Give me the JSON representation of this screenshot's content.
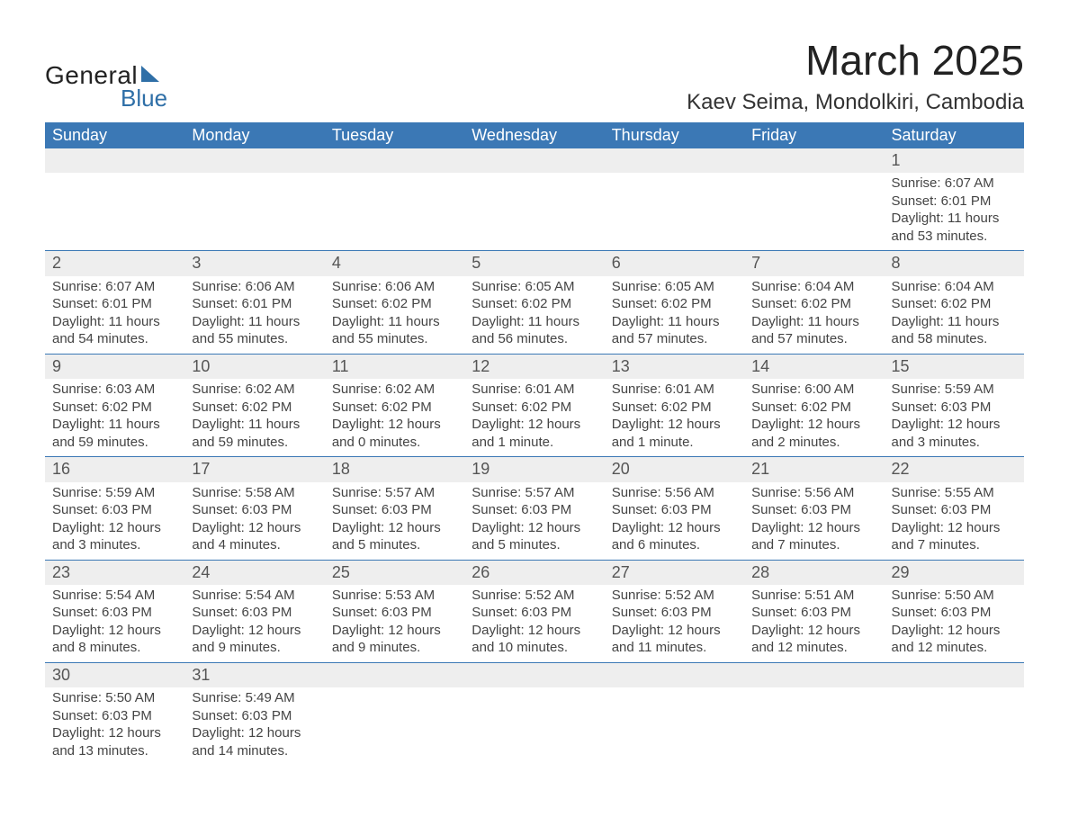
{
  "logo": {
    "text_general": "General",
    "text_blue": "Blue"
  },
  "title": "March 2025",
  "location": "Kaev Seima, Mondolkiri, Cambodia",
  "colors": {
    "header_bg": "#3b78b5",
    "header_text": "#ffffff",
    "daynum_bg": "#eeeeee",
    "row_divider": "#3b78b5",
    "text": "#333333",
    "brand_blue": "#2f6fa7"
  },
  "typography": {
    "title_fontsize": 46,
    "location_fontsize": 24,
    "dayheader_fontsize": 18,
    "daynum_fontsize": 18,
    "cell_fontsize": 15
  },
  "day_headers": [
    "Sunday",
    "Monday",
    "Tuesday",
    "Wednesday",
    "Thursday",
    "Friday",
    "Saturday"
  ],
  "weeks": [
    [
      null,
      null,
      null,
      null,
      null,
      null,
      {
        "n": "1",
        "sr": "Sunrise: 6:07 AM",
        "ss": "Sunset: 6:01 PM",
        "dl": "Daylight: 11 hours and 53 minutes."
      }
    ],
    [
      {
        "n": "2",
        "sr": "Sunrise: 6:07 AM",
        "ss": "Sunset: 6:01 PM",
        "dl": "Daylight: 11 hours and 54 minutes."
      },
      {
        "n": "3",
        "sr": "Sunrise: 6:06 AM",
        "ss": "Sunset: 6:01 PM",
        "dl": "Daylight: 11 hours and 55 minutes."
      },
      {
        "n": "4",
        "sr": "Sunrise: 6:06 AM",
        "ss": "Sunset: 6:02 PM",
        "dl": "Daylight: 11 hours and 55 minutes."
      },
      {
        "n": "5",
        "sr": "Sunrise: 6:05 AM",
        "ss": "Sunset: 6:02 PM",
        "dl": "Daylight: 11 hours and 56 minutes."
      },
      {
        "n": "6",
        "sr": "Sunrise: 6:05 AM",
        "ss": "Sunset: 6:02 PM",
        "dl": "Daylight: 11 hours and 57 minutes."
      },
      {
        "n": "7",
        "sr": "Sunrise: 6:04 AM",
        "ss": "Sunset: 6:02 PM",
        "dl": "Daylight: 11 hours and 57 minutes."
      },
      {
        "n": "8",
        "sr": "Sunrise: 6:04 AM",
        "ss": "Sunset: 6:02 PM",
        "dl": "Daylight: 11 hours and 58 minutes."
      }
    ],
    [
      {
        "n": "9",
        "sr": "Sunrise: 6:03 AM",
        "ss": "Sunset: 6:02 PM",
        "dl": "Daylight: 11 hours and 59 minutes."
      },
      {
        "n": "10",
        "sr": "Sunrise: 6:02 AM",
        "ss": "Sunset: 6:02 PM",
        "dl": "Daylight: 11 hours and 59 minutes."
      },
      {
        "n": "11",
        "sr": "Sunrise: 6:02 AM",
        "ss": "Sunset: 6:02 PM",
        "dl": "Daylight: 12 hours and 0 minutes."
      },
      {
        "n": "12",
        "sr": "Sunrise: 6:01 AM",
        "ss": "Sunset: 6:02 PM",
        "dl": "Daylight: 12 hours and 1 minute."
      },
      {
        "n": "13",
        "sr": "Sunrise: 6:01 AM",
        "ss": "Sunset: 6:02 PM",
        "dl": "Daylight: 12 hours and 1 minute."
      },
      {
        "n": "14",
        "sr": "Sunrise: 6:00 AM",
        "ss": "Sunset: 6:02 PM",
        "dl": "Daylight: 12 hours and 2 minutes."
      },
      {
        "n": "15",
        "sr": "Sunrise: 5:59 AM",
        "ss": "Sunset: 6:03 PM",
        "dl": "Daylight: 12 hours and 3 minutes."
      }
    ],
    [
      {
        "n": "16",
        "sr": "Sunrise: 5:59 AM",
        "ss": "Sunset: 6:03 PM",
        "dl": "Daylight: 12 hours and 3 minutes."
      },
      {
        "n": "17",
        "sr": "Sunrise: 5:58 AM",
        "ss": "Sunset: 6:03 PM",
        "dl": "Daylight: 12 hours and 4 minutes."
      },
      {
        "n": "18",
        "sr": "Sunrise: 5:57 AM",
        "ss": "Sunset: 6:03 PM",
        "dl": "Daylight: 12 hours and 5 minutes."
      },
      {
        "n": "19",
        "sr": "Sunrise: 5:57 AM",
        "ss": "Sunset: 6:03 PM",
        "dl": "Daylight: 12 hours and 5 minutes."
      },
      {
        "n": "20",
        "sr": "Sunrise: 5:56 AM",
        "ss": "Sunset: 6:03 PM",
        "dl": "Daylight: 12 hours and 6 minutes."
      },
      {
        "n": "21",
        "sr": "Sunrise: 5:56 AM",
        "ss": "Sunset: 6:03 PM",
        "dl": "Daylight: 12 hours and 7 minutes."
      },
      {
        "n": "22",
        "sr": "Sunrise: 5:55 AM",
        "ss": "Sunset: 6:03 PM",
        "dl": "Daylight: 12 hours and 7 minutes."
      }
    ],
    [
      {
        "n": "23",
        "sr": "Sunrise: 5:54 AM",
        "ss": "Sunset: 6:03 PM",
        "dl": "Daylight: 12 hours and 8 minutes."
      },
      {
        "n": "24",
        "sr": "Sunrise: 5:54 AM",
        "ss": "Sunset: 6:03 PM",
        "dl": "Daylight: 12 hours and 9 minutes."
      },
      {
        "n": "25",
        "sr": "Sunrise: 5:53 AM",
        "ss": "Sunset: 6:03 PM",
        "dl": "Daylight: 12 hours and 9 minutes."
      },
      {
        "n": "26",
        "sr": "Sunrise: 5:52 AM",
        "ss": "Sunset: 6:03 PM",
        "dl": "Daylight: 12 hours and 10 minutes."
      },
      {
        "n": "27",
        "sr": "Sunrise: 5:52 AM",
        "ss": "Sunset: 6:03 PM",
        "dl": "Daylight: 12 hours and 11 minutes."
      },
      {
        "n": "28",
        "sr": "Sunrise: 5:51 AM",
        "ss": "Sunset: 6:03 PM",
        "dl": "Daylight: 12 hours and 12 minutes."
      },
      {
        "n": "29",
        "sr": "Sunrise: 5:50 AM",
        "ss": "Sunset: 6:03 PM",
        "dl": "Daylight: 12 hours and 12 minutes."
      }
    ],
    [
      {
        "n": "30",
        "sr": "Sunrise: 5:50 AM",
        "ss": "Sunset: 6:03 PM",
        "dl": "Daylight: 12 hours and 13 minutes."
      },
      {
        "n": "31",
        "sr": "Sunrise: 5:49 AM",
        "ss": "Sunset: 6:03 PM",
        "dl": "Daylight: 12 hours and 14 minutes."
      },
      null,
      null,
      null,
      null,
      null
    ]
  ]
}
